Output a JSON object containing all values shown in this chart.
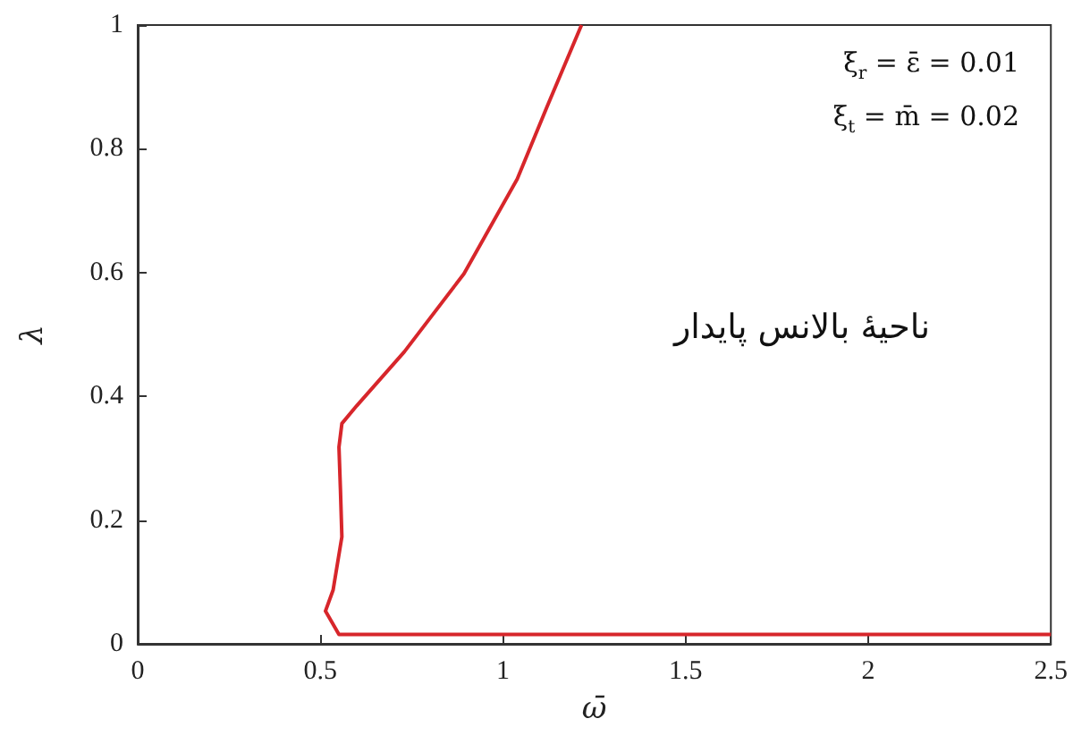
{
  "chart_data": {
    "type": "line",
    "xlabel": "ω̄",
    "ylabel": "λ",
    "xlim": [
      0,
      2.5
    ],
    "xticks": [
      0,
      0.5,
      1,
      1.5,
      2,
      2.5
    ],
    "ylim": [
      0,
      1
    ],
    "yticks": [
      0,
      0.2,
      0.4,
      0.6,
      0.8,
      1
    ],
    "grid": false,
    "marker": "none",
    "line_style": "solid",
    "series": [
      {
        "color": "#d7262b",
        "x": [
          2.5,
          2.0,
          1.5,
          1.0,
          0.75,
          0.6,
          0.551,
          0.514,
          0.535,
          0.559,
          0.555,
          0.551,
          0.559,
          0.6,
          0.73,
          0.893,
          1.039,
          1.12,
          1.215
        ],
        "values": [
          0.015,
          0.015,
          0.015,
          0.015,
          0.015,
          0.015,
          0.015,
          0.053,
          0.087,
          0.173,
          0.25,
          0.318,
          0.356,
          0.385,
          0.472,
          0.598,
          0.751,
          0.867,
          1.0
        ]
      }
    ],
    "annotations": [
      "ξ$_{r}$ = ε̄ = 0.01",
      "ξ$_{t}$ = m̄ = 0.02",
      "ناحیهٔ بالانس پایدار"
    ]
  }
}
